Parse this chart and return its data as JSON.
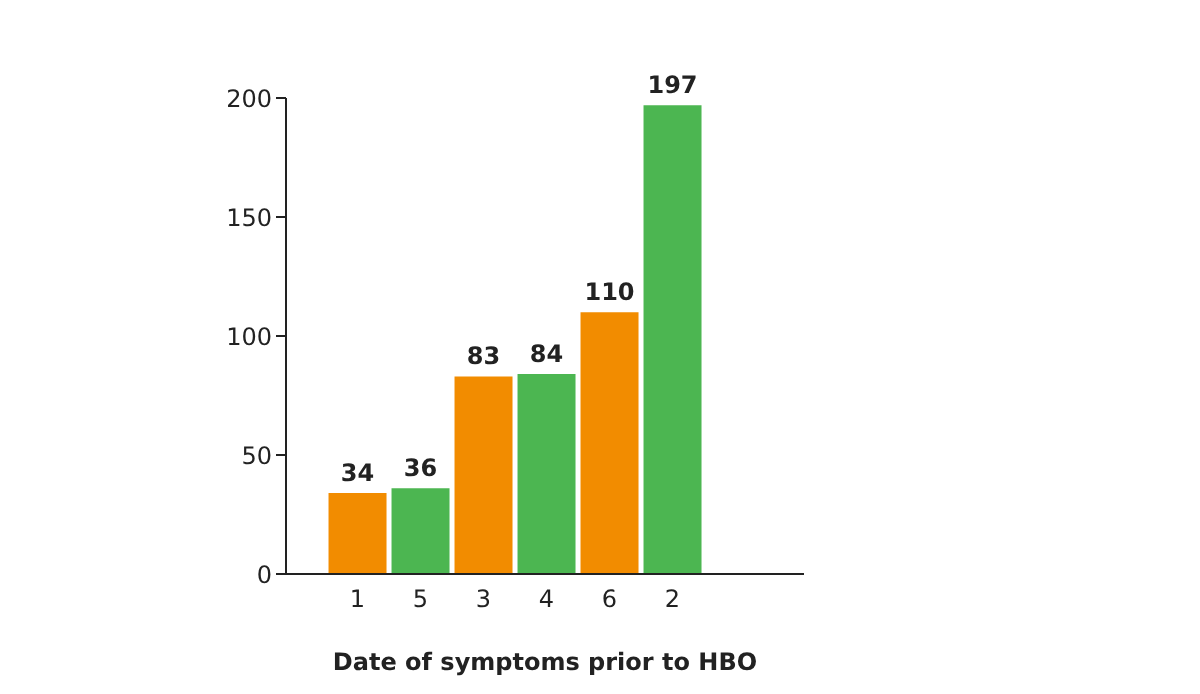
{
  "chart_data": {
    "type": "bar",
    "xlabel": "Date of symptoms prior to HBO",
    "categories": [
      "1",
      "5",
      "3",
      "4",
      "6",
      "2"
    ],
    "values": [
      34,
      36,
      83,
      84,
      110,
      197
    ],
    "colors": [
      "#f28c00",
      "#4cb651",
      "#f28c00",
      "#4cb651",
      "#f28c00",
      "#4cb651"
    ],
    "ylim": [
      0,
      200
    ],
    "yticks": [
      0,
      50,
      100,
      150,
      200
    ],
    "grid": false,
    "legend": false,
    "data_labels": true
  }
}
